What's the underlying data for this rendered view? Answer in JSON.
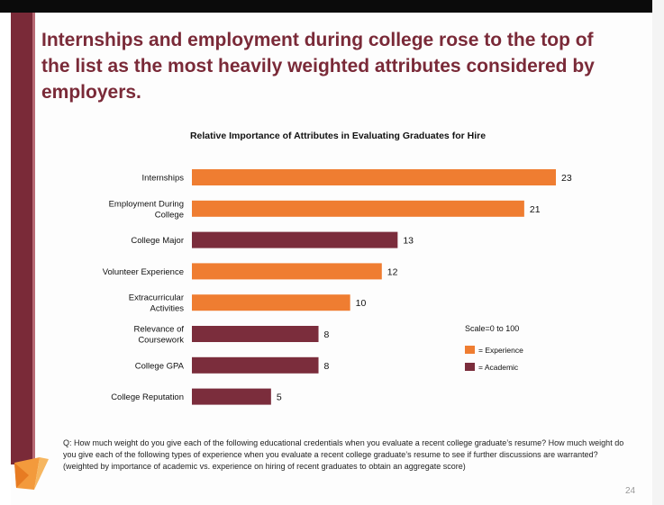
{
  "slide": {
    "title": "Internships and employment during college rose to the top of the list as the most heavily weighted attributes considered by employers.",
    "footnote": "Q: How much weight do you give each of the following educational credentials when you evaluate a recent college graduate’s resume? How much weight do you give each of the following types of experience when you evaluate a recent college graduate’s resume to see if further discussions are warranted? (weighted by importance of academic vs. experience on hiring of recent graduates to obtain an aggregate score)",
    "page_number": "24"
  },
  "colors": {
    "experience": "#ef7d31",
    "academic": "#7b2d3c",
    "title": "#7a2a38"
  },
  "chart_data": {
    "type": "bar",
    "orientation": "horizontal",
    "title": "Relative Importance of Attributes in Evaluating Graduates for Hire",
    "scale_note": "Scale=0 to 100",
    "xlim": [
      0,
      23
    ],
    "categories": [
      [
        "Internships"
      ],
      [
        "Employment During",
        "College"
      ],
      [
        "College Major"
      ],
      [
        "Volunteer Experience"
      ],
      [
        "Extracurricular",
        "Activities"
      ],
      [
        "Relevance of",
        "Coursework"
      ],
      [
        "College GPA"
      ],
      [
        "College Reputation"
      ]
    ],
    "values": [
      23,
      21,
      13,
      12,
      10,
      8,
      8,
      5
    ],
    "groups": [
      "experience",
      "experience",
      "academic",
      "experience",
      "experience",
      "academic",
      "academic",
      "academic"
    ],
    "legend": [
      {
        "key": "experience",
        "label": "= Experience"
      },
      {
        "key": "academic",
        "label": "= Academic"
      }
    ]
  }
}
